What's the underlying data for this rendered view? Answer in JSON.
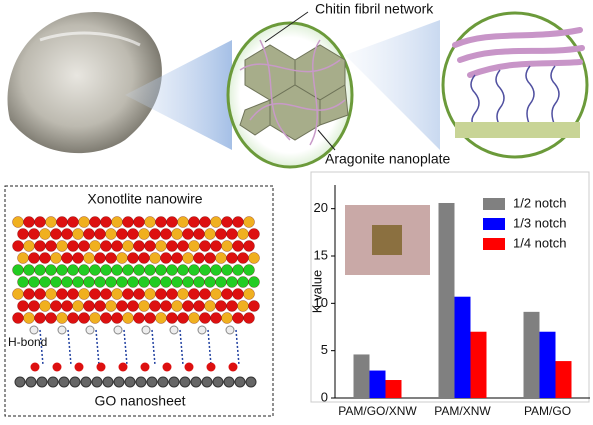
{
  "figure": {
    "top_labels": {
      "chitin": "Chitin fibril network",
      "aragonite": "Aragonite nanoplate"
    },
    "molecule_labels": {
      "title": "Xonotlite nanowire",
      "hbond": "H-bond",
      "base": "GO nanosheet"
    }
  },
  "chart_data": {
    "type": "bar",
    "y_label": "K value",
    "categories": [
      "PAM/GO/XNW",
      "PAM/XNW",
      "PAM/GO"
    ],
    "series": [
      {
        "name": "1/2 notch",
        "color": "#808080",
        "values": [
          4.6,
          20.6,
          9.1
        ]
      },
      {
        "name": "1/3 notch",
        "color": "#0000ff",
        "values": [
          2.9,
          10.7,
          7.0
        ]
      },
      {
        "name": "1/4 notch",
        "color": "#ff0000",
        "values": [
          1.9,
          7.0,
          3.9
        ]
      }
    ],
    "ylim": [
      0,
      22.5
    ],
    "yticks": [
      0,
      5,
      10,
      15,
      20
    ],
    "legend": "upper right"
  }
}
